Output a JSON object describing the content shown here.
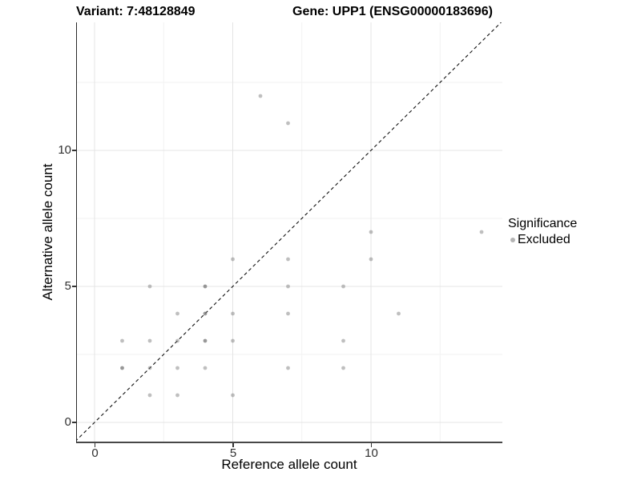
{
  "titles": {
    "variant": "Variant: 7:48128849",
    "gene": "Gene: UPP1 (ENSG00000183696)"
  },
  "axes": {
    "x": {
      "label": "Reference allele count",
      "tick_labels": [
        "0",
        "5",
        "10"
      ],
      "tick_values": [
        0,
        5,
        10
      ],
      "minor_tick_values": [
        2.5,
        7.5,
        12.5
      ]
    },
    "y": {
      "label": "Alternative allele count",
      "tick_labels": [
        "0",
        "5",
        "10"
      ],
      "tick_values": [
        0,
        5,
        10
      ],
      "minor_tick_values": [
        2.5,
        7.5,
        12.5
      ]
    }
  },
  "legend": {
    "title": "Significance",
    "items": [
      {
        "label": "Excluded",
        "color": "#b4b4b4"
      }
    ]
  },
  "colors": {
    "point_fill": "#707070",
    "point_opacity_normal": 0.45,
    "point_opacity_dense": 0.72,
    "grid_major": "#e4e4e4",
    "grid_minor": "#f2f2f2",
    "axis_line": "#2b2b2b",
    "identity_line": "#111111",
    "tick": "#333333"
  },
  "chart_data": {
    "type": "scatter",
    "title_left": "Variant: 7:48128849",
    "title_right": "Gene: UPP1 (ENSG00000183696)",
    "xlabel": "Reference allele count",
    "ylabel": "Alternative allele count",
    "xlim": [
      -0.7,
      14.75
    ],
    "ylim": [
      -0.7,
      14.7
    ],
    "x_ticks": [
      0,
      5,
      10
    ],
    "y_ticks": [
      0,
      5,
      10
    ],
    "grid": "on",
    "legend_position": "right",
    "identity_line": {
      "style": "dashed",
      "slope": 1,
      "intercept": 0
    },
    "series": [
      {
        "name": "Excluded",
        "points": [
          [
            1,
            2
          ],
          [
            1,
            3
          ],
          [
            2,
            1
          ],
          [
            2,
            2
          ],
          [
            2,
            3
          ],
          [
            2,
            5
          ],
          [
            3,
            1
          ],
          [
            3,
            2
          ],
          [
            3,
            3
          ],
          [
            3,
            4
          ],
          [
            4,
            2
          ],
          [
            4,
            3
          ],
          [
            4,
            4
          ],
          [
            4,
            5
          ],
          [
            5,
            1
          ],
          [
            5,
            3
          ],
          [
            5,
            4
          ],
          [
            5,
            6
          ],
          [
            6,
            12
          ],
          [
            7,
            2
          ],
          [
            7,
            4
          ],
          [
            7,
            5
          ],
          [
            7,
            6
          ],
          [
            7,
            11
          ],
          [
            9,
            2
          ],
          [
            9,
            3
          ],
          [
            9,
            5
          ],
          [
            10,
            6
          ],
          [
            10,
            7
          ],
          [
            11,
            4
          ],
          [
            14,
            7
          ]
        ]
      }
    ],
    "overplotted_points": [
      [
        1,
        2
      ],
      [
        4,
        3
      ],
      [
        4,
        4
      ],
      [
        4,
        5
      ]
    ]
  }
}
